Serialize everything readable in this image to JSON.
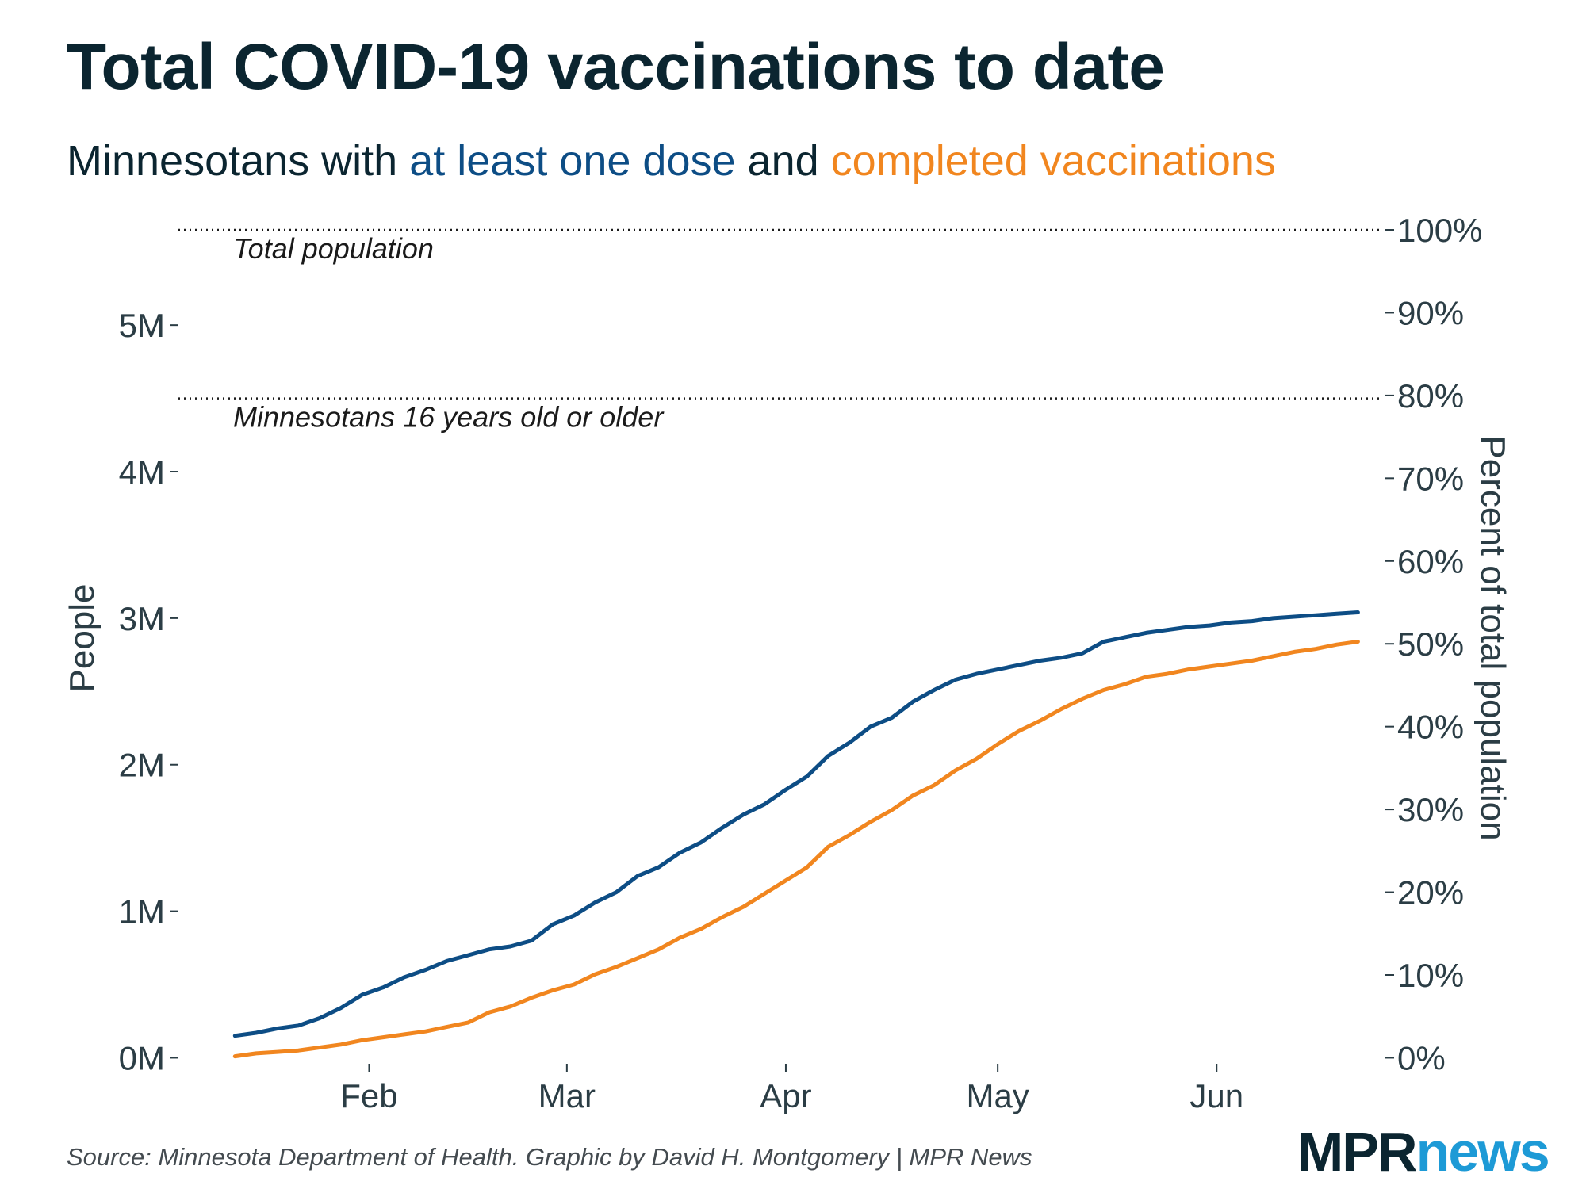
{
  "title": "Total COVID-19 vaccinations to date",
  "subtitle": {
    "prefix": "Minnesotans with ",
    "series1_label": "at least one dose",
    "middle": " and ",
    "series2_label": "completed vaccinations"
  },
  "source": "Source: Minnesota Department of Health. Graphic by David H. Montgomery | MPR News",
  "logo": {
    "part1": "MPR",
    "part2": "news"
  },
  "colors": {
    "one_dose": "#0d4d85",
    "completed": "#f1861f",
    "text": "#0b2530",
    "axis": "#2b3d45",
    "logo_news": "#1d9ad6"
  },
  "chart_data": {
    "type": "line",
    "title": "Total COVID-19 vaccinations to date",
    "xlabel": "",
    "ylabel": "People",
    "ylabel_right": "Percent of total population",
    "x_unit": "days since Jan 1, 2021",
    "xlim": [
      4,
      175
    ],
    "ylim": [
      -0.03,
      5.65
    ],
    "y_unit": "millions of people",
    "x_ticks": [
      {
        "value": 31,
        "label": "Feb"
      },
      {
        "value": 59,
        "label": "Mar"
      },
      {
        "value": 90,
        "label": "Apr"
      },
      {
        "value": 120,
        "label": "May"
      },
      {
        "value": 151,
        "label": "Jun"
      }
    ],
    "y_ticks": [
      {
        "value": 0,
        "label": "0M"
      },
      {
        "value": 1,
        "label": "1M"
      },
      {
        "value": 2,
        "label": "2M"
      },
      {
        "value": 3,
        "label": "3M"
      },
      {
        "value": 4,
        "label": "4M"
      },
      {
        "value": 5,
        "label": "5M"
      }
    ],
    "y2_ticks": [
      {
        "value": 0,
        "label": "0%"
      },
      {
        "value": 0.565,
        "label": "10%"
      },
      {
        "value": 1.13,
        "label": "20%"
      },
      {
        "value": 1.695,
        "label": "30%"
      },
      {
        "value": 2.26,
        "label": "40%"
      },
      {
        "value": 2.825,
        "label": "50%"
      },
      {
        "value": 3.39,
        "label": "60%"
      },
      {
        "value": 3.955,
        "label": "70%"
      },
      {
        "value": 4.52,
        "label": "80%"
      },
      {
        "value": 5.085,
        "label": "90%"
      },
      {
        "value": 5.65,
        "label": "100%"
      }
    ],
    "reference_lines": [
      {
        "value": 5.65,
        "label": "Total population"
      },
      {
        "value": 4.5,
        "label": "Minnesotans 16 years old or older"
      }
    ],
    "series": [
      {
        "name": "at least one dose",
        "x": [
          12,
          15,
          18,
          21,
          24,
          27,
          30,
          33,
          36,
          39,
          42,
          45,
          48,
          51,
          54,
          57,
          60,
          63,
          66,
          69,
          72,
          75,
          78,
          81,
          84,
          87,
          90,
          93,
          96,
          99,
          102,
          105,
          108,
          111,
          114,
          117,
          120,
          123,
          126,
          129,
          132,
          135,
          138,
          141,
          144,
          147,
          150,
          153,
          156,
          159,
          162,
          165,
          168,
          171
        ],
        "values": [
          0.15,
          0.17,
          0.2,
          0.22,
          0.27,
          0.34,
          0.43,
          0.48,
          0.55,
          0.6,
          0.66,
          0.7,
          0.74,
          0.76,
          0.8,
          0.91,
          0.97,
          1.06,
          1.13,
          1.24,
          1.3,
          1.4,
          1.47,
          1.57,
          1.66,
          1.73,
          1.83,
          1.92,
          2.06,
          2.15,
          2.26,
          2.32,
          2.43,
          2.51,
          2.58,
          2.62,
          2.65,
          2.68,
          2.71,
          2.73,
          2.76,
          2.84,
          2.87,
          2.9,
          2.92,
          2.94,
          2.95,
          2.97,
          2.98,
          3,
          3.01,
          3.02,
          3.03,
          3.04
        ]
      },
      {
        "name": "completed vaccinations",
        "x": [
          12,
          15,
          18,
          21,
          24,
          27,
          30,
          33,
          36,
          39,
          42,
          45,
          48,
          51,
          54,
          57,
          60,
          63,
          66,
          69,
          72,
          75,
          78,
          81,
          84,
          87,
          90,
          93,
          96,
          99,
          102,
          105,
          108,
          111,
          114,
          117,
          120,
          123,
          126,
          129,
          132,
          135,
          138,
          141,
          144,
          147,
          150,
          153,
          156,
          159,
          162,
          165,
          168,
          171
        ],
        "values": [
          0.01,
          0.03,
          0.04,
          0.05,
          0.07,
          0.09,
          0.12,
          0.14,
          0.16,
          0.18,
          0.21,
          0.24,
          0.31,
          0.35,
          0.41,
          0.46,
          0.5,
          0.57,
          0.62,
          0.68,
          0.74,
          0.82,
          0.88,
          0.96,
          1.03,
          1.12,
          1.21,
          1.3,
          1.44,
          1.52,
          1.61,
          1.69,
          1.79,
          1.86,
          1.96,
          2.04,
          2.14,
          2.23,
          2.3,
          2.38,
          2.45,
          2.51,
          2.55,
          2.6,
          2.62,
          2.65,
          2.67,
          2.69,
          2.71,
          2.74,
          2.77,
          2.79,
          2.82,
          2.84
        ]
      }
    ]
  }
}
